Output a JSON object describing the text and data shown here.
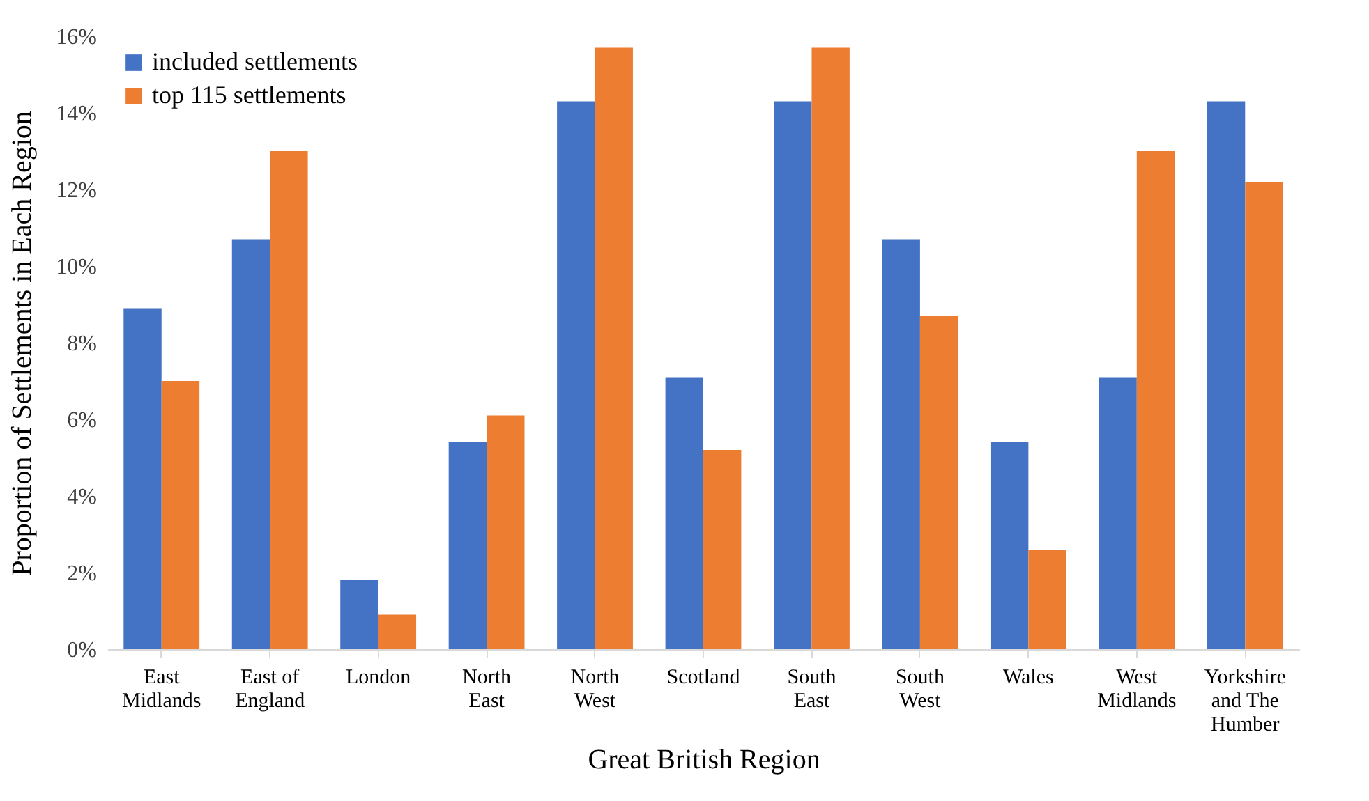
{
  "chart_data": {
    "type": "bar",
    "xlabel": "Great British Region",
    "ylabel": "Proportion of Settlements in Each Region",
    "categories": [
      "East Midlands",
      "East of England",
      "London",
      "North East",
      "North West",
      "Scotland",
      "South East",
      "South West",
      "Wales",
      "West Midlands",
      "Yorkshire and The Humber"
    ],
    "series": [
      {
        "name": "included settlements",
        "color": "#4472c4",
        "values": [
          8.9,
          10.7,
          1.8,
          5.4,
          14.3,
          7.1,
          14.3,
          10.7,
          5.4,
          7.1,
          14.3
        ]
      },
      {
        "name": "top 115 settlements",
        "color": "#ed7d31",
        "values": [
          7.0,
          13.0,
          0.9,
          6.1,
          15.7,
          5.2,
          15.7,
          8.7,
          2.6,
          13.0,
          12.2
        ]
      }
    ],
    "ylim": [
      0,
      16
    ],
    "yticks": [
      {
        "value": 0,
        "label": "0%"
      },
      {
        "value": 2,
        "label": "2%"
      },
      {
        "value": 4,
        "label": "4%"
      },
      {
        "value": 6,
        "label": "6%"
      },
      {
        "value": 8,
        "label": "8%"
      },
      {
        "value": 10,
        "label": "10%"
      },
      {
        "value": 12,
        "label": "12%"
      },
      {
        "value": 14,
        "label": "14%"
      },
      {
        "value": 16,
        "label": "16%"
      }
    ],
    "grid": false,
    "legend": "top left"
  }
}
